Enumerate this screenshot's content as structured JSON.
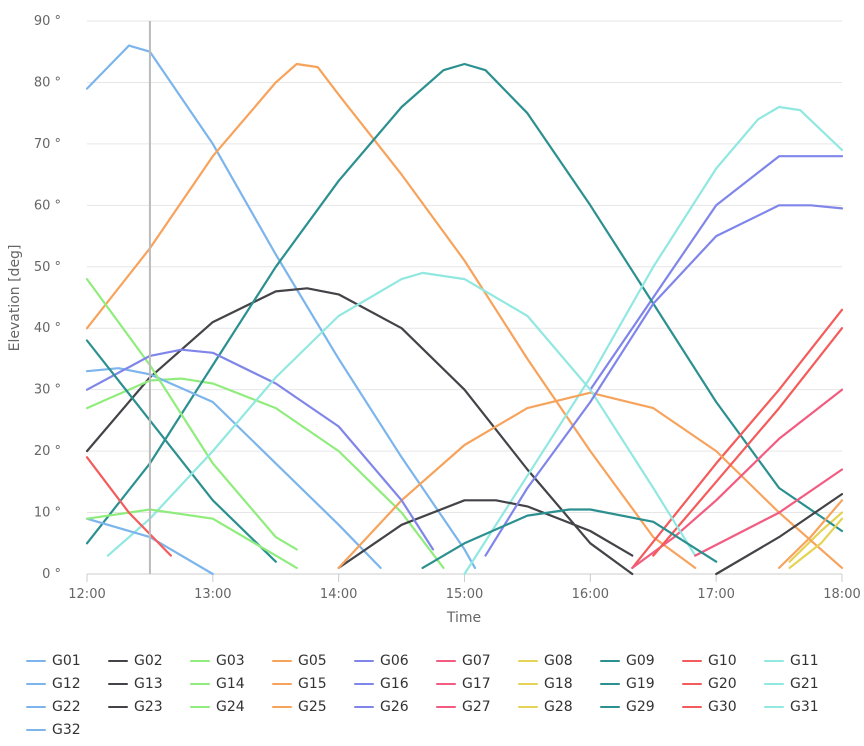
{
  "chart_data": {
    "type": "line",
    "xlabel": "Time",
    "ylabel": "Elevation [deg]",
    "xlim": [
      "12:00",
      "18:00"
    ],
    "ylim": [
      0,
      90
    ],
    "x_ticks": [
      "12:00",
      "13:00",
      "14:00",
      "15:00",
      "16:00",
      "17:00",
      "18:00"
    ],
    "y_ticks": [
      "0 °",
      "10 °",
      "20 °",
      "30 °",
      "40 °",
      "50 °",
      "60 °",
      "70 °",
      "80 °",
      "90 °"
    ],
    "cursor_time": "12:30",
    "grid": true,
    "legend_position": "bottom",
    "legend": [
      "G01",
      "G02",
      "G03",
      "G05",
      "G06",
      "G07",
      "G08",
      "G09",
      "G10",
      "G11",
      "G12",
      "G13",
      "G14",
      "G15",
      "G16",
      "G17",
      "G18",
      "G19",
      "G20",
      "G21",
      "G22",
      "G23",
      "G24",
      "G25",
      "G26",
      "G27",
      "G28",
      "G29",
      "G30",
      "G31",
      "G32"
    ],
    "series": [
      {
        "name": "G01",
        "color": "#7cb5ec",
        "points": [
          [
            "12:00",
            79
          ],
          [
            "12:20",
            86
          ],
          [
            "12:30",
            85
          ],
          [
            "13:00",
            70
          ],
          [
            "13:30",
            52
          ],
          [
            "14:00",
            35
          ],
          [
            "14:30",
            19
          ],
          [
            "15:00",
            4
          ],
          [
            "15:05",
            1
          ]
        ]
      },
      {
        "name": "G02",
        "color": "#434348",
        "points": [
          [
            "12:00",
            20
          ],
          [
            "12:30",
            32
          ],
          [
            "13:00",
            41
          ],
          [
            "13:30",
            46
          ],
          [
            "13:45",
            46.5
          ],
          [
            "14:00",
            45.5
          ],
          [
            "14:30",
            40
          ],
          [
            "15:00",
            30
          ],
          [
            "15:30",
            17
          ],
          [
            "16:00",
            5
          ],
          [
            "16:20",
            0
          ]
        ]
      },
      {
        "name": "G03",
        "color": "#90ed7d",
        "points": [
          [
            "12:00",
            27
          ],
          [
            "12:30",
            31.5
          ],
          [
            "12:45",
            31.8
          ],
          [
            "13:00",
            31
          ],
          [
            "13:30",
            27
          ],
          [
            "14:00",
            20
          ],
          [
            "14:30",
            10
          ],
          [
            "14:50",
            1
          ]
        ]
      },
      {
        "name": "G05",
        "color": "#f7a35c",
        "points": [
          [
            "12:00",
            40
          ],
          [
            "12:30",
            53
          ],
          [
            "13:00",
            68
          ],
          [
            "13:30",
            80
          ],
          [
            "13:40",
            83
          ],
          [
            "13:50",
            82.5
          ],
          [
            "14:00",
            78
          ],
          [
            "14:30",
            65
          ],
          [
            "15:00",
            51
          ],
          [
            "15:30",
            35
          ],
          [
            "16:00",
            20
          ],
          [
            "16:30",
            6
          ],
          [
            "16:50",
            1
          ]
        ]
      },
      {
        "name": "G06",
        "color": "#8085e9",
        "points": [
          [
            "16:00",
            30
          ],
          [
            "16:20",
            40
          ],
          [
            "16:40",
            50
          ],
          [
            "17:00",
            60
          ],
          [
            "17:30",
            68
          ],
          [
            "18:00",
            68
          ]
        ]
      },
      {
        "name": "G07",
        "color": "#f15c80",
        "points": []
      },
      {
        "name": "G08",
        "color": "#e4d354",
        "points": [
          [
            "17:35",
            2
          ],
          [
            "17:50",
            7
          ],
          [
            "18:00",
            10
          ]
        ]
      },
      {
        "name": "G09",
        "color": "#2b908f",
        "points": [
          [
            "12:00",
            5
          ],
          [
            "12:30",
            18
          ],
          [
            "13:00",
            34
          ],
          [
            "13:30",
            50
          ],
          [
            "14:00",
            64
          ],
          [
            "14:30",
            76
          ],
          [
            "14:50",
            82
          ],
          [
            "15:00",
            83
          ],
          [
            "15:10",
            82
          ],
          [
            "15:30",
            75
          ],
          [
            "16:00",
            60
          ],
          [
            "16:30",
            44
          ],
          [
            "17:00",
            28
          ],
          [
            "17:30",
            14
          ],
          [
            "18:00",
            7
          ]
        ]
      },
      {
        "name": "G10",
        "color": "#f45b5b",
        "points": [
          [
            "16:20",
            1
          ],
          [
            "17:00",
            18
          ],
          [
            "17:30",
            30
          ],
          [
            "18:00",
            43
          ]
        ]
      },
      {
        "name": "G11",
        "color": "#91e8e1",
        "points": [
          [
            "15:00",
            0
          ],
          [
            "15:30",
            16
          ],
          [
            "16:00",
            32
          ],
          [
            "16:30",
            50
          ],
          [
            "17:00",
            66
          ],
          [
            "17:20",
            74
          ],
          [
            "17:30",
            76
          ],
          [
            "17:40",
            75.5
          ],
          [
            "18:00",
            69
          ]
        ]
      },
      {
        "name": "G12",
        "color": "#7cb5ec",
        "points": [
          [
            "12:00",
            33
          ],
          [
            "12:15",
            33.5
          ],
          [
            "12:30",
            32.5
          ],
          [
            "13:00",
            28
          ],
          [
            "13:30",
            18
          ],
          [
            "14:00",
            8
          ],
          [
            "14:20",
            1
          ]
        ]
      },
      {
        "name": "G13",
        "color": "#434348",
        "points": [
          [
            "14:00",
            1
          ],
          [
            "14:30",
            8
          ],
          [
            "15:00",
            12
          ],
          [
            "15:15",
            12
          ],
          [
            "15:30",
            11
          ],
          [
            "16:00",
            7
          ],
          [
            "16:20",
            3
          ]
        ]
      },
      {
        "name": "G14",
        "color": "#90ed7d",
        "points": [
          [
            "12:00",
            48
          ],
          [
            "12:30",
            34
          ],
          [
            "13:00",
            18
          ],
          [
            "13:30",
            6
          ],
          [
            "13:40",
            4
          ]
        ]
      },
      {
        "name": "G15",
        "color": "#f7a35c",
        "points": [
          [
            "14:00",
            1
          ],
          [
            "14:30",
            12
          ],
          [
            "15:00",
            21
          ],
          [
            "15:30",
            27
          ],
          [
            "16:00",
            29.5
          ],
          [
            "16:30",
            27
          ],
          [
            "17:00",
            20
          ],
          [
            "17:30",
            10
          ],
          [
            "18:00",
            1
          ]
        ]
      },
      {
        "name": "G16",
        "color": "#8085e9",
        "points": [
          [
            "12:00",
            30
          ],
          [
            "12:30",
            35.5
          ],
          [
            "12:45",
            36.5
          ],
          [
            "13:00",
            36
          ],
          [
            "13:30",
            31
          ],
          [
            "14:00",
            24
          ],
          [
            "14:30",
            12
          ],
          [
            "14:45",
            4
          ]
        ]
      },
      {
        "name": "G17",
        "color": "#f15c80",
        "points": [
          [
            "16:20",
            1
          ],
          [
            "16:40",
            6
          ],
          [
            "17:00",
            12
          ],
          [
            "17:30",
            22
          ],
          [
            "18:00",
            30
          ]
        ]
      },
      {
        "name": "G18",
        "color": "#e4d354",
        "points": []
      },
      {
        "name": "G19",
        "color": "#2b908f",
        "points": [
          [
            "12:00",
            38
          ],
          [
            "12:30",
            25
          ],
          [
            "13:00",
            12
          ],
          [
            "13:30",
            2
          ]
        ]
      },
      {
        "name": "G20",
        "color": "#f45b5b",
        "points": [
          [
            "16:30",
            3
          ],
          [
            "17:00",
            15
          ],
          [
            "17:30",
            27
          ],
          [
            "18:00",
            40
          ]
        ]
      },
      {
        "name": "G21",
        "color": "#91e8e1",
        "points": [
          [
            "12:10",
            3
          ],
          [
            "12:30",
            9
          ],
          [
            "13:00",
            20
          ],
          [
            "13:30",
            32
          ],
          [
            "14:00",
            42
          ],
          [
            "14:30",
            48
          ],
          [
            "14:40",
            49
          ],
          [
            "15:00",
            48
          ],
          [
            "15:30",
            42
          ],
          [
            "16:00",
            30
          ],
          [
            "16:30",
            14
          ],
          [
            "16:50",
            3
          ]
        ]
      },
      {
        "name": "G22",
        "color": "#7cb5ec",
        "points": [
          [
            "12:00",
            9
          ],
          [
            "12:30",
            6
          ],
          [
            "13:00",
            0
          ]
        ]
      },
      {
        "name": "G23",
        "color": "#434348",
        "points": [
          [
            "17:00",
            0
          ],
          [
            "17:30",
            6
          ],
          [
            "18:00",
            13
          ]
        ]
      },
      {
        "name": "G24",
        "color": "#90ed7d",
        "points": [
          [
            "12:00",
            9
          ],
          [
            "12:30",
            10.5
          ],
          [
            "13:00",
            9
          ],
          [
            "13:30",
            3
          ],
          [
            "13:40",
            1
          ]
        ]
      },
      {
        "name": "G25",
        "color": "#f7a35c",
        "points": [
          [
            "17:30",
            1
          ],
          [
            "17:45",
            6
          ],
          [
            "18:00",
            12
          ]
        ]
      },
      {
        "name": "G26",
        "color": "#8085e9",
        "points": [
          [
            "15:10",
            3
          ],
          [
            "15:30",
            14
          ],
          [
            "16:00",
            28
          ],
          [
            "16:30",
            44
          ],
          [
            "17:00",
            55
          ],
          [
            "17:30",
            60
          ],
          [
            "17:45",
            60
          ],
          [
            "18:00",
            59.5
          ]
        ]
      },
      {
        "name": "G27",
        "color": "#f15c80",
        "points": [
          [
            "16:50",
            3
          ],
          [
            "17:30",
            10
          ],
          [
            "18:00",
            17
          ]
        ]
      },
      {
        "name": "G28",
        "color": "#e4d354",
        "points": [
          [
            "17:35",
            1
          ],
          [
            "17:50",
            5
          ],
          [
            "18:00",
            9
          ]
        ]
      },
      {
        "name": "G29",
        "color": "#2b908f",
        "points": [
          [
            "14:40",
            1
          ],
          [
            "15:00",
            5
          ],
          [
            "15:30",
            9.5
          ],
          [
            "15:50",
            10.5
          ],
          [
            "16:00",
            10.5
          ],
          [
            "16:30",
            8.5
          ],
          [
            "17:00",
            2
          ]
        ]
      },
      {
        "name": "G30",
        "color": "#f45b5b",
        "points": [
          [
            "12:00",
            19
          ],
          [
            "12:20",
            10
          ],
          [
            "12:40",
            3
          ]
        ]
      },
      {
        "name": "G31",
        "color": "#91e8e1",
        "points": []
      },
      {
        "name": "G32",
        "color": "#7cb5ec",
        "points": []
      }
    ]
  }
}
